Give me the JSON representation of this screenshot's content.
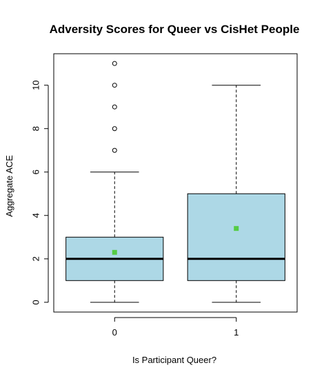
{
  "chart_data": {
    "type": "boxplot",
    "title": "Adversity Scores for Queer vs CisHet People",
    "xlabel": "Is Participant Queer?",
    "ylabel": "Aggregate ACE",
    "categories": [
      "0",
      "1"
    ],
    "ylim": [
      -0.45,
      11.45
    ],
    "yticks": [
      0,
      2,
      4,
      6,
      8,
      10
    ],
    "grid": false,
    "legend": "none",
    "boxes": [
      {
        "category": "0",
        "whisker_low": 0,
        "q1": 1,
        "median": 2,
        "q3": 3,
        "whisker_high": 6,
        "mean": 2.3,
        "outliers": [
          7,
          8,
          9,
          10,
          11
        ]
      },
      {
        "category": "1",
        "whisker_low": 0,
        "q1": 1,
        "median": 2,
        "q3": 5,
        "whisker_high": 10,
        "mean": 3.4,
        "outliers": []
      }
    ],
    "colors": {
      "box_fill": "#add8e6",
      "mean_marker": "#55cc44",
      "stroke": "#000000"
    }
  }
}
